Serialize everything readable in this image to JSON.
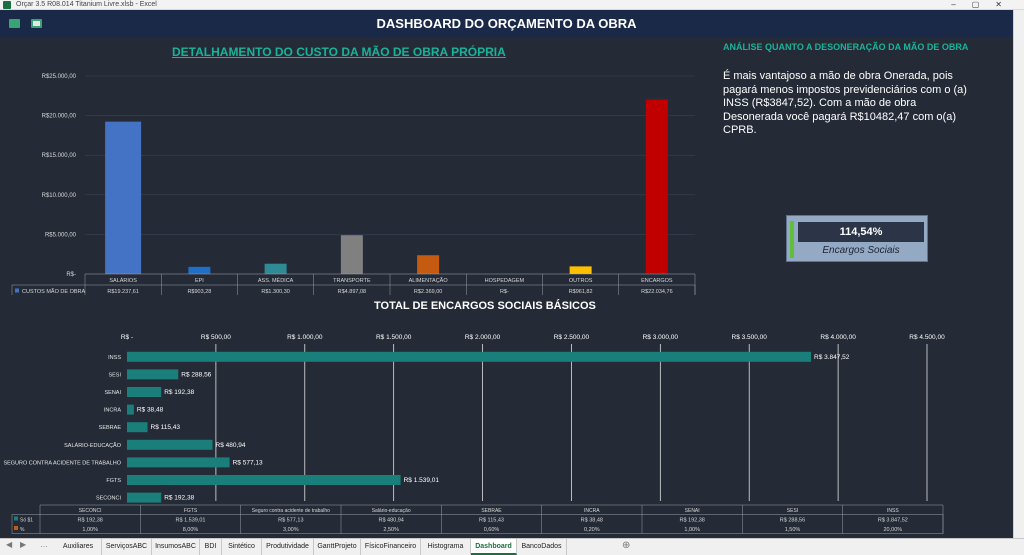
{
  "window": {
    "title": "Orçar 3.5 R08.014 Titanium Livre.xlsb - Excel"
  },
  "dashboard": {
    "title": "DASHBOARD DO ORÇAMENTO DA OBRA"
  },
  "labor_chart": {
    "title": "DETALHAMENTO DO CUSTO DA MÃO DE OBRA PRÓPRIA",
    "legend_label": "CUSTOS MÃO DE OBRA",
    "chart_data": {
      "type": "bar",
      "categories": [
        "SALÁRIOS",
        "EPI",
        "ASS. MÉDICA",
        "TRANSPORTE",
        "ALIMENTAÇÃO",
        "HOSPEDAGEM",
        "OUTROS",
        "ENCARGOS"
      ],
      "values": [
        19237.61,
        903.28,
        1300.3,
        4897.08,
        2369.0,
        0,
        961.82,
        22034.76
      ],
      "data_labels": [
        "R$19.237,61",
        "R$903,28",
        "R$1.300,30",
        "R$4.897,08",
        "R$2.369,00",
        "R$-",
        "R$961,82",
        "R$22.034,76"
      ],
      "colors": [
        "#4472c4",
        "#1f6fc6",
        "#2e8b96",
        "#808080",
        "#c55a11",
        "#2b2b2b",
        "#ffc000",
        "#c00000"
      ],
      "yticks": [
        "R$-",
        "R$5.000,00",
        "R$10.000,00",
        "R$15.000,00",
        "R$20.000,00",
        "R$25.000,00"
      ],
      "ylim": [
        0,
        25000
      ]
    }
  },
  "analysis": {
    "title": "ANÁLISE QUANTO A DESONERAÇÃO DA MÃO DE OBRA",
    "text": "É mais vantajoso a mão de obra Onerada, pois pagará menos impostos previdenciários com o (a) INSS (R$3847,52). Com a mão de obra Desonerada você pagará R$10482,47 com o(a) CPRB."
  },
  "kpi": {
    "value": "114,54%",
    "label": "Encargos Sociais"
  },
  "charges_chart": {
    "title": "TOTAL DE ENCARGOS SOCIAIS BÁSICOS",
    "chart_data": {
      "type": "bar",
      "orientation": "horizontal",
      "categories": [
        "INSS",
        "SESI",
        "SENAI",
        "INCRA",
        "SEBRAE",
        "SALÁRIO-EDUCAÇÃO",
        "SEGURO CONTRA ACIDENTE DE TRABALHO",
        "FGTS",
        "SECONCI"
      ],
      "values": [
        3847.52,
        288.56,
        192.38,
        38.48,
        115.43,
        480.94,
        577.13,
        1539.01,
        192.38
      ],
      "data_labels": [
        "R$ 3.847,52",
        "R$ 288,56",
        "R$ 192,38",
        "R$ 38,48",
        "R$ 115,43",
        "R$ 480,94",
        "R$ 577,13",
        "R$ 1.539,01",
        "R$ 192,38"
      ],
      "xticks": [
        "R$ -",
        "R$ 500,00",
        "R$ 1.000,00",
        "R$ 1.500,00",
        "R$ 2.000,00",
        "R$ 2.500,00",
        "R$ 3.000,00",
        "R$ 3.500,00",
        "R$ 4.000,00",
        "R$ 4.500,00"
      ],
      "xlim": [
        0,
        4500
      ],
      "color": "#1a7f7a"
    },
    "table": {
      "headers": [
        "SECONCI",
        "FGTS",
        "Seguro contra acidente de trabalho",
        "Salário-educação",
        "SEBRAE",
        "INCRA",
        "SENAI",
        "SESI",
        "INSS"
      ],
      "rows": [
        {
          "label": "Só $1",
          "values": [
            "R$ 192,38",
            "R$ 1.539,01",
            "R$ 577,13",
            "R$ 480,94",
            "R$ 115,43",
            "R$ 38,48",
            "R$ 192,38",
            "R$ 288,56",
            "R$ 3.847,52"
          ]
        },
        {
          "label": "%",
          "values": [
            "1,00%",
            "8,00%",
            "3,00%",
            "2,50%",
            "0,60%",
            "0,20%",
            "1,00%",
            "1,50%",
            "20,00%"
          ]
        }
      ]
    }
  },
  "sheet_tabs": [
    "Auxiliares",
    "ServiçosABC",
    "InsumosABC",
    "BDI",
    "Sintético",
    "Produtividade",
    "GanttProjeto",
    "FísicoFinanceiro",
    "Histograma",
    "Dashboard",
    "BancoDados"
  ],
  "active_tab": "Dashboard"
}
